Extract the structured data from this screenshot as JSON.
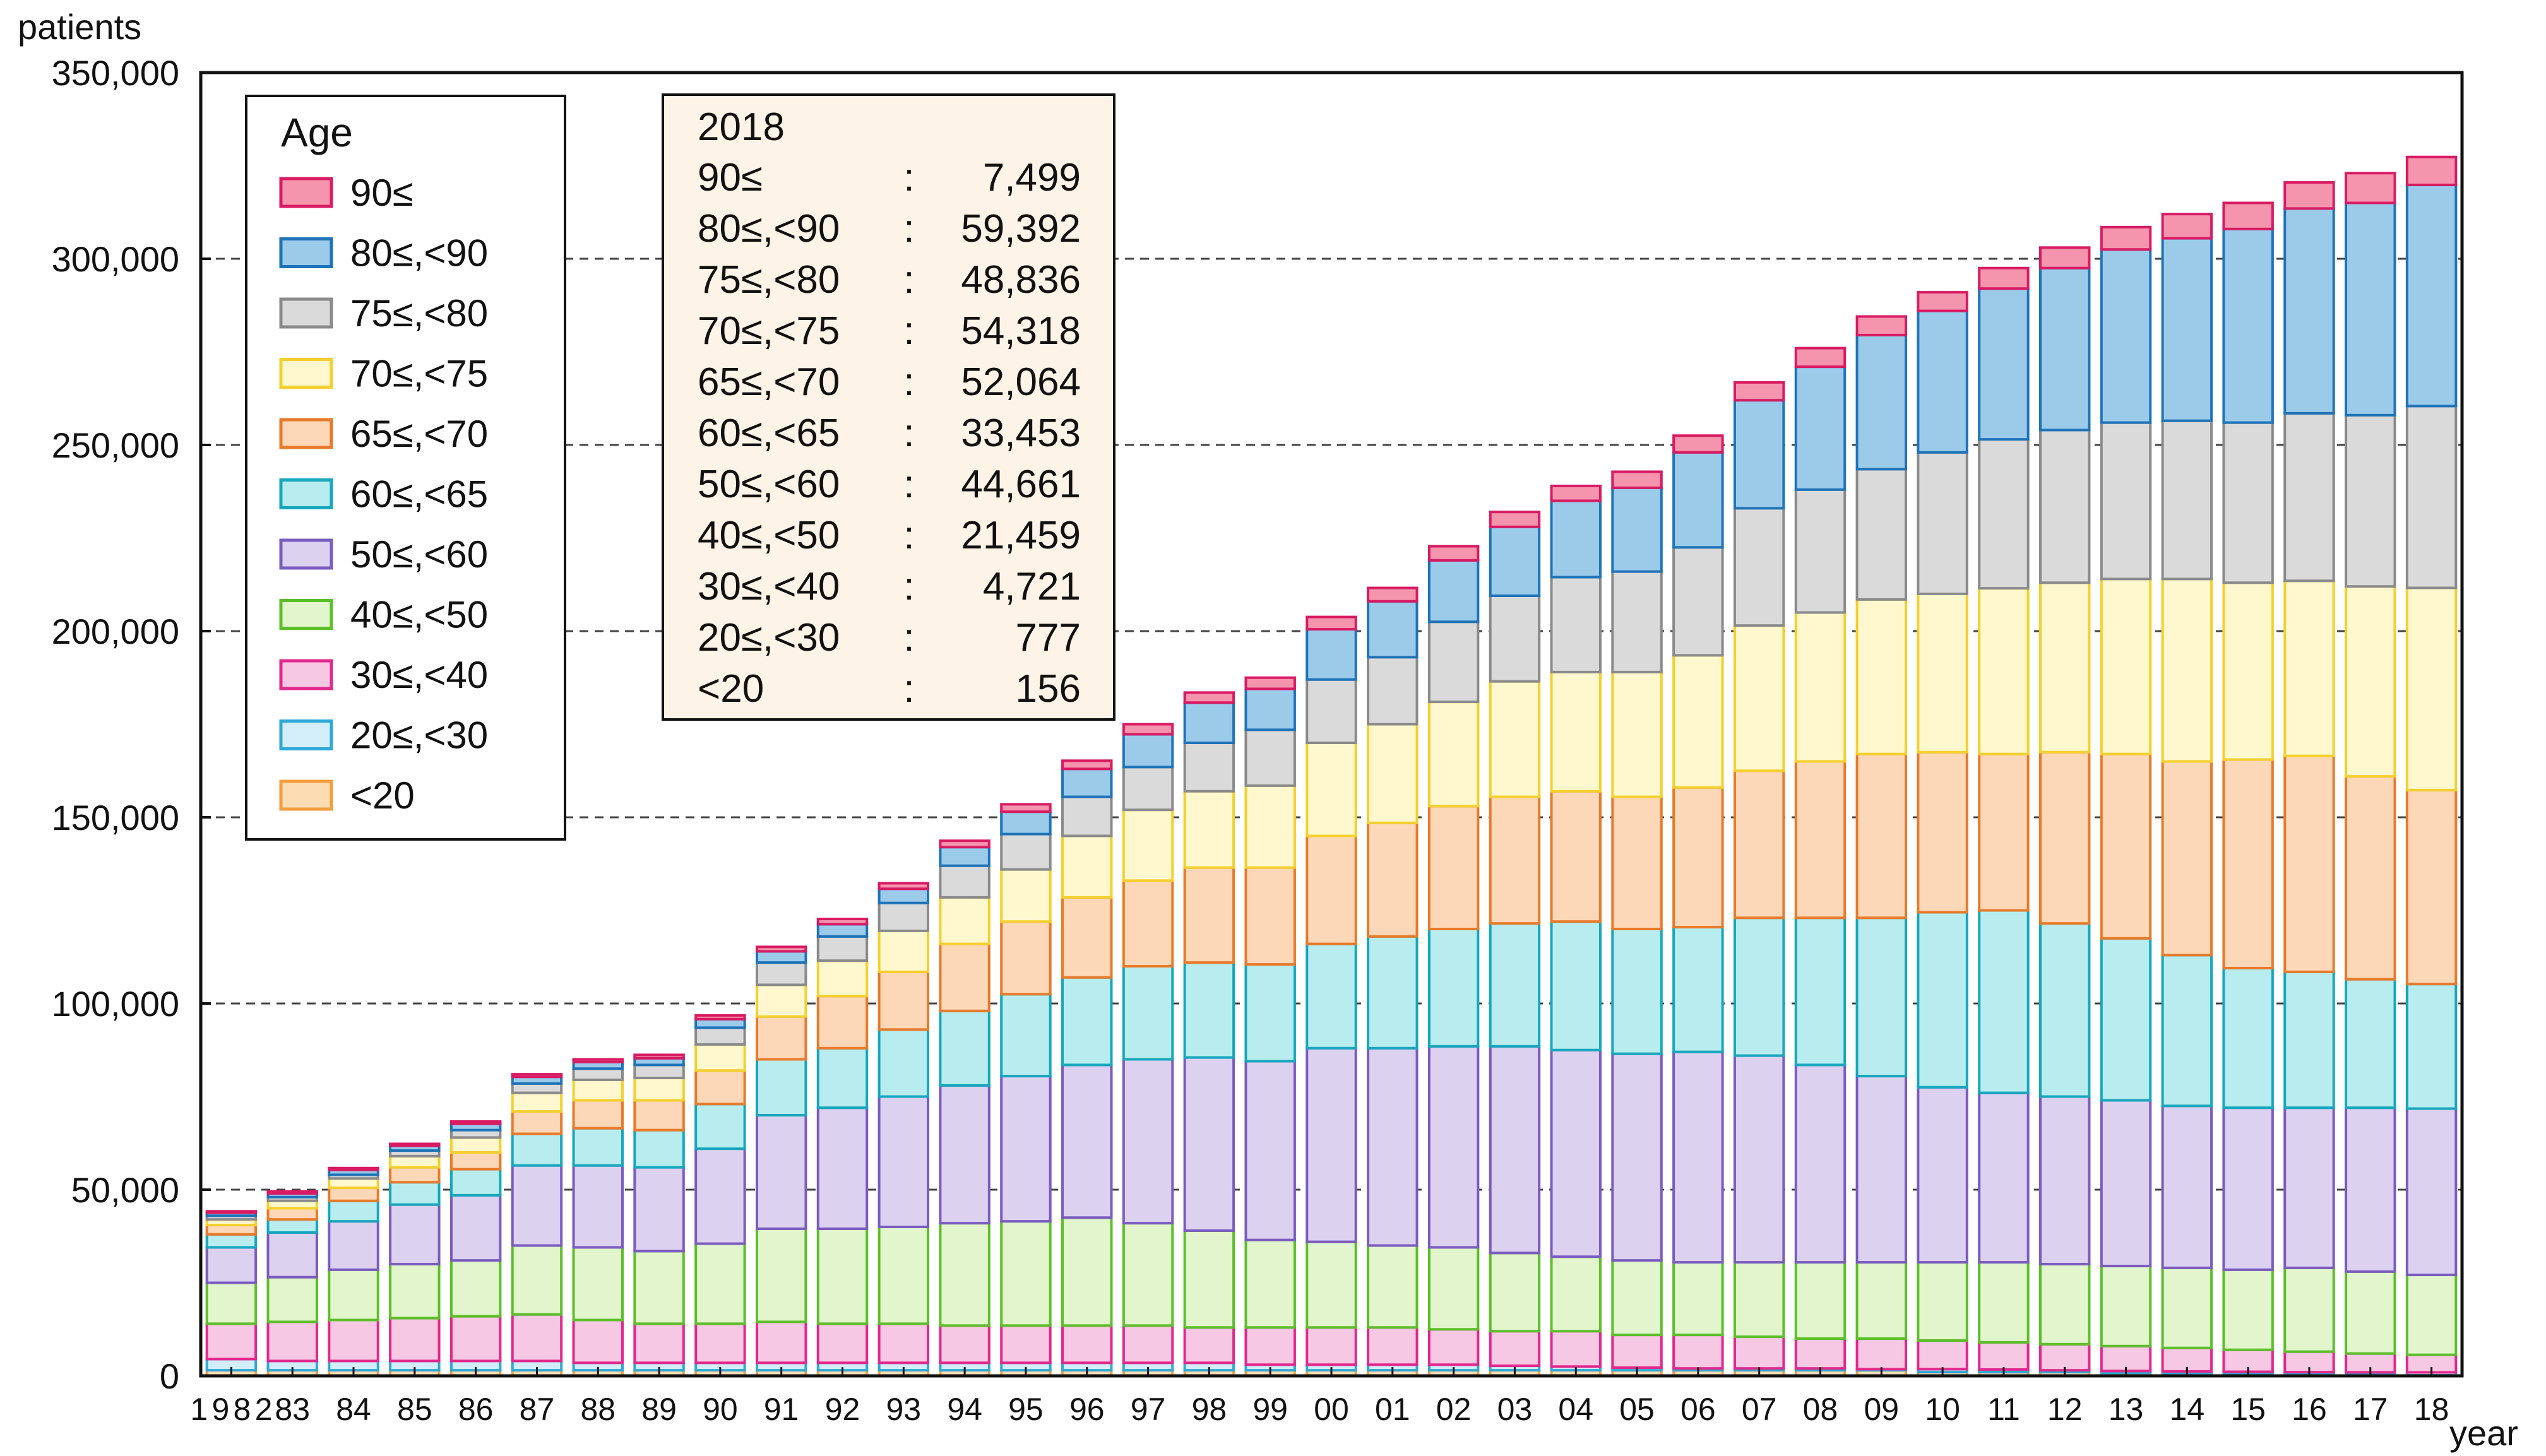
{
  "chart_data": {
    "type": "stacked-bar",
    "ylabel": "patients",
    "xlabel": "year",
    "ylim": [
      0,
      350000
    ],
    "yticks": [
      0,
      50000,
      100000,
      150000,
      200000,
      250000,
      300000,
      350000
    ],
    "ytick_labels": [
      "0",
      "50,000",
      "100,000",
      "150,000",
      "200,000",
      "250,000",
      "300,000",
      "350,000"
    ],
    "gridlines": "dashed horizontal at each 50,000",
    "categories": [
      "1982",
      "83",
      "84",
      "85",
      "86",
      "87",
      "88",
      "89",
      "90",
      "91",
      "92",
      "93",
      "94",
      "95",
      "96",
      "97",
      "98",
      "99",
      "00",
      "01",
      "02",
      "03",
      "04",
      "05",
      "06",
      "07",
      "08",
      "09",
      "10",
      "11",
      "12",
      "13",
      "14",
      "15",
      "16",
      "17",
      "18"
    ],
    "cumulative_tops": {
      "<20": [
        1500,
        1500,
        1500,
        1500,
        1500,
        1500,
        1500,
        1500,
        1500,
        1500,
        1500,
        1500,
        1500,
        1500,
        1500,
        1500,
        1500,
        1500,
        1500,
        1500,
        1500,
        1500,
        1500,
        1500,
        1500,
        1500,
        1500,
        1500,
        1000,
        1000,
        1000,
        800,
        700,
        700,
        600,
        500,
        156
      ],
      "20≤,<30": [
        4500,
        4000,
        4000,
        4000,
        4000,
        4000,
        3500,
        3500,
        3500,
        3500,
        3500,
        3500,
        3500,
        3500,
        3500,
        3500,
        3500,
        3000,
        3000,
        3000,
        3000,
        2700,
        2500,
        2200,
        2000,
        2000,
        2000,
        1800,
        1800,
        1700,
        1500,
        1300,
        1200,
        1100,
        1000,
        950,
        933
      ],
      "30≤,<40": [
        14000,
        14500,
        15000,
        15500,
        16000,
        16500,
        15000,
        14000,
        14000,
        14500,
        14000,
        14000,
        13500,
        13500,
        13500,
        13500,
        13000,
        13000,
        13000,
        13000,
        12500,
        12000,
        12000,
        11000,
        11000,
        10500,
        10000,
        10000,
        9500,
        9000,
        8500,
        8000,
        7500,
        7000,
        6500,
        6000,
        5654
      ],
      "40≤,<50": [
        25000,
        26500,
        28500,
        30000,
        31000,
        35000,
        34500,
        33500,
        35500,
        39500,
        39500,
        40000,
        41000,
        41500,
        42500,
        41000,
        39000,
        36500,
        36000,
        35000,
        34500,
        33000,
        32000,
        31000,
        30500,
        30500,
        30500,
        30500,
        30500,
        30500,
        30000,
        29500,
        29000,
        28500,
        29000,
        28000,
        27113
      ],
      "50≤,<60": [
        34500,
        38500,
        41500,
        46000,
        48500,
        56500,
        56500,
        56000,
        61000,
        70000,
        72000,
        75000,
        78000,
        80500,
        83500,
        85000,
        85500,
        84500,
        88000,
        88000,
        88500,
        88500,
        87500,
        86500,
        87000,
        86000,
        83500,
        80500,
        77500,
        76000,
        75000,
        74000,
        72500,
        72000,
        72000,
        72000,
        71774
      ],
      "60≤,<65": [
        38000,
        42000,
        47000,
        52000,
        55500,
        65000,
        66500,
        66000,
        73000,
        85000,
        88000,
        93000,
        98000,
        102500,
        107000,
        110000,
        111000,
        110500,
        116000,
        118000,
        120000,
        121500,
        122000,
        120000,
        120500,
        123000,
        123000,
        123000,
        124500,
        125000,
        121500,
        117500,
        113000,
        109500,
        108500,
        106500,
        105227
      ],
      "65≤,<70": [
        40500,
        45000,
        50500,
        56000,
        60000,
        71000,
        74000,
        74000,
        82000,
        96500,
        102000,
        108500,
        116000,
        122000,
        128500,
        133000,
        136500,
        136500,
        145000,
        148500,
        153000,
        155500,
        157000,
        155500,
        158000,
        162500,
        165000,
        167000,
        167500,
        167000,
        167500,
        167000,
        165000,
        165500,
        166500,
        161000,
        157291
      ],
      "70≤,<75": [
        42000,
        47000,
        53000,
        59000,
        64000,
        76000,
        79500,
        80000,
        89000,
        105000,
        111500,
        119500,
        128500,
        136000,
        145000,
        152000,
        157000,
        158500,
        170000,
        175000,
        181000,
        186500,
        189000,
        189000,
        193500,
        201500,
        205000,
        208500,
        210000,
        211500,
        213000,
        214000,
        214000,
        213000,
        213500,
        212000,
        211609
      ],
      "75≤,<80": [
        43000,
        48000,
        54000,
        60500,
        66000,
        78500,
        82500,
        83500,
        93500,
        111000,
        118000,
        127000,
        137000,
        145500,
        155500,
        163500,
        170000,
        173500,
        187000,
        193000,
        202500,
        209500,
        214500,
        216000,
        222500,
        233000,
        238000,
        243500,
        248000,
        251500,
        254000,
        256000,
        256500,
        256000,
        258500,
        258000,
        260445
      ],
      "80≤,<90": [
        43800,
        49000,
        55300,
        61800,
        67700,
        80300,
        84300,
        85300,
        95800,
        114000,
        121300,
        130800,
        142000,
        151500,
        163000,
        172300,
        180800,
        184500,
        200500,
        208000,
        219000,
        228000,
        235000,
        238500,
        248000,
        262000,
        271000,
        279500,
        286000,
        292000,
        297500,
        302500,
        305500,
        308000,
        313500,
        315000,
        319837
      ],
      "90≤": [
        44200,
        49500,
        55800,
        62300,
        68300,
        81000,
        85000,
        86200,
        96800,
        115200,
        122700,
        132300,
        143700,
        153500,
        165200,
        175000,
        183500,
        187500,
        203800,
        211600,
        222800,
        232000,
        239000,
        242800,
        252500,
        266800,
        276000,
        284500,
        291000,
        297500,
        303000,
        308500,
        312000,
        315000,
        320500,
        323000,
        327336
      ]
    },
    "series": [
      {
        "name": "<20",
        "color": "#f59d3d",
        "fill": "#fcdcb3"
      },
      {
        "name": "20≤,<30",
        "color": "#2ea8d6",
        "fill": "#d3eef8"
      },
      {
        "name": "30≤,<40",
        "color": "#e2288c",
        "fill": "#f7c8e3"
      },
      {
        "name": "40≤,<50",
        "color": "#5cbf2a",
        "fill": "#e2f5cc"
      },
      {
        "name": "50≤,<60",
        "color": "#7a5cc0",
        "fill": "#dcd1ef"
      },
      {
        "name": "60≤,<65",
        "color": "#16a7bd",
        "fill": "#b9ecee"
      },
      {
        "name": "65≤,<70",
        "color": "#e87a2a",
        "fill": "#fcd8b8"
      },
      {
        "name": "70≤,<75",
        "color": "#f4d02e",
        "fill": "#fff8cf"
      },
      {
        "name": "75≤,<80",
        "color": "#8a8a8a",
        "fill": "#dadada"
      },
      {
        "name": "80≤,<90",
        "color": "#1f73b8",
        "fill": "#9ccbea"
      },
      {
        "name": "90≤",
        "color": "#d81b63",
        "fill": "#f495ad"
      }
    ],
    "legend": {
      "title": "Age",
      "placement": "top-left",
      "entries_top_to_bottom": [
        "90≤",
        "80≤,<90",
        "75≤,<80",
        "70≤,<75",
        "65≤,<70",
        "60≤,<65",
        "50≤,<60",
        "40≤,<50",
        "30≤,<40",
        "20≤,<30",
        "<20"
      ]
    },
    "annotation": {
      "placement": "top-center-left",
      "year": "2018",
      "rows": [
        {
          "label": "90≤",
          "sep": ":",
          "value": "7,499"
        },
        {
          "label": "80≤,<90",
          "sep": ":",
          "value": "59,392"
        },
        {
          "label": "75≤,<80",
          "sep": ":",
          "value": "48,836"
        },
        {
          "label": "70≤,<75",
          "sep": ":",
          "value": "54,318"
        },
        {
          "label": "65≤,<70",
          "sep": ":",
          "value": "52,064"
        },
        {
          "label": "60≤,<65",
          "sep": ":",
          "value": "33,453"
        },
        {
          "label": "50≤,<60",
          "sep": ":",
          "value": "44,661"
        },
        {
          "label": "40≤,<50",
          "sep": ":",
          "value": "21,459"
        },
        {
          "label": "30≤,<40",
          "sep": ":",
          "value": "4,721"
        },
        {
          "label": "20≤,<30",
          "sep": ":",
          "value": "777"
        },
        {
          "label": "<20",
          "sep": ":",
          "value": "156"
        }
      ]
    }
  }
}
